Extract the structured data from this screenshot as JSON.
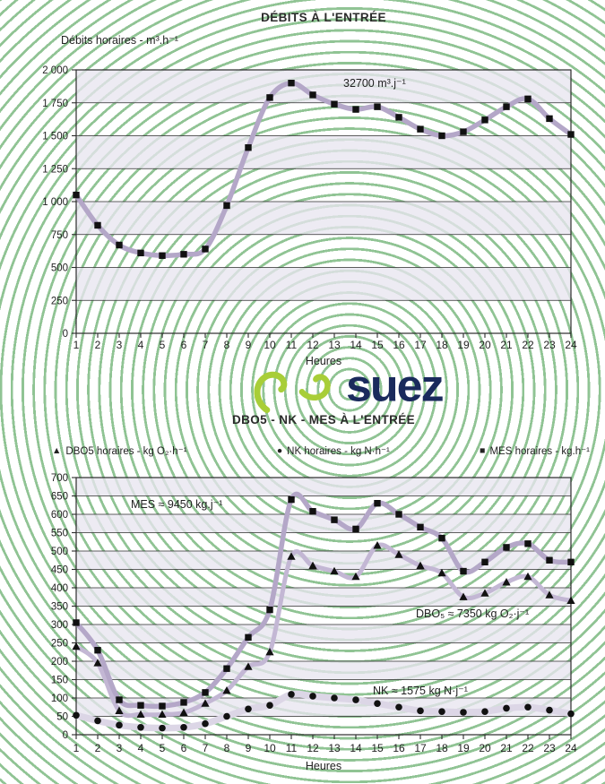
{
  "page_title": "DÉBITS À L'ENTRÉE / DBO5 - NK - MES À L'ENTRÉE",
  "style": {
    "ring_color": "#7cb981",
    "band_color": "rgba(232,230,240,0.78)",
    "grid_color": "#2b2b2b",
    "marker_color": "#111111",
    "logo_swirl_color": "#a8ce38",
    "logo_text_color": "#1a2a5c"
  },
  "logo": {
    "text": "suez"
  },
  "chart_data": [
    {
      "id": "debits-entree",
      "type": "line",
      "title": "DÉBITS À L'ENTRÉE",
      "ylabel": "Débits horaires - m³.h⁻¹",
      "xlabel": "Heures",
      "annotation": "32700 m³.j⁻¹",
      "ylim": [
        0,
        2000
      ],
      "ytick_step": 250,
      "grid": true,
      "shaded_bands": [
        [
          1750,
          2000
        ],
        [
          1250,
          1500
        ],
        [
          750,
          1000
        ],
        [
          250,
          500
        ]
      ],
      "x": [
        1,
        2,
        3,
        4,
        5,
        6,
        7,
        8,
        9,
        10,
        11,
        12,
        13,
        14,
        15,
        16,
        17,
        18,
        19,
        20,
        21,
        22,
        23,
        24
      ],
      "series": [
        {
          "name": "Débits horaires - m³.h⁻¹",
          "marker": "square",
          "glyph": "■",
          "color": "#b4a7c8",
          "values": [
            1050,
            820,
            670,
            610,
            590,
            600,
            640,
            970,
            1410,
            1790,
            1900,
            1810,
            1740,
            1700,
            1720,
            1640,
            1550,
            1500,
            1530,
            1620,
            1720,
            1780,
            1630,
            1510
          ]
        }
      ]
    },
    {
      "id": "dbo5-nk-mes-entree",
      "type": "line",
      "title": "DBO5 - NK - MES À L'ENTRÉE",
      "xlabel": "Heures",
      "ylim": [
        0,
        700
      ],
      "ytick_step": 50,
      "grid": true,
      "legend_position": "top",
      "shaded_bands": [
        [
          650,
          700
        ],
        [
          550,
          600
        ],
        [
          450,
          500
        ],
        [
          350,
          400
        ],
        [
          250,
          300
        ],
        [
          150,
          200
        ],
        [
          50,
          100
        ]
      ],
      "annotations": {
        "mes": "MES ≈ 9450 kg.j⁻¹",
        "dbo5": "DBO₅ ≈ 7350 kg O₂·j⁻¹",
        "nk": "NK ≈ 1575 kg N·j⁻¹"
      },
      "x": [
        1,
        2,
        3,
        4,
        5,
        6,
        7,
        8,
        9,
        10,
        11,
        12,
        13,
        14,
        15,
        16,
        17,
        18,
        19,
        20,
        21,
        22,
        23,
        24
      ],
      "series": [
        {
          "name": "DBO5 horaires - kg O₂·h⁻¹",
          "marker": "triangle",
          "glyph": "▲",
          "color": "#c3b7d4",
          "values": [
            240,
            195,
            65,
            55,
            55,
            60,
            85,
            120,
            185,
            225,
            485,
            460,
            445,
            430,
            515,
            490,
            460,
            440,
            375,
            385,
            415,
            430,
            380,
            365
          ]
        },
        {
          "name": "NK horaires - kg N·h⁻¹",
          "marker": "circle",
          "glyph": "●",
          "color": "#dcd6e6",
          "values": [
            53,
            38,
            26,
            20,
            18,
            20,
            30,
            50,
            70,
            80,
            110,
            105,
            100,
            95,
            85,
            75,
            65,
            63,
            61,
            63,
            72,
            75,
            67,
            57
          ]
        },
        {
          "name": "MES horaires - kg.h⁻¹",
          "marker": "square",
          "glyph": "■",
          "color": "#b4a7c8",
          "values": [
            305,
            230,
            95,
            80,
            78,
            88,
            115,
            180,
            265,
            340,
            640,
            608,
            585,
            560,
            630,
            600,
            565,
            535,
            445,
            470,
            510,
            520,
            475,
            470
          ]
        }
      ]
    }
  ]
}
